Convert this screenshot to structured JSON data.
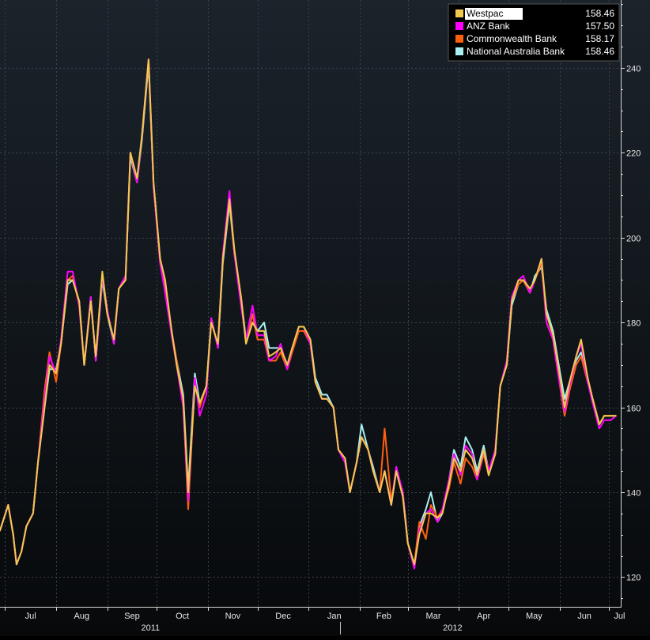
{
  "chart_data": {
    "type": "line",
    "title": "",
    "xlabel": "",
    "ylabel": "",
    "ylim": [
      113,
      256
    ],
    "y_ticks": [
      120,
      140,
      160,
      180,
      200,
      220,
      240
    ],
    "y_axis_side": "right",
    "x_range": [
      "2011-06-28",
      "2012-07-08"
    ],
    "month_ticks": [
      {
        "label": "Jul",
        "date": "2011-07-01"
      },
      {
        "label": "Aug",
        "date": "2011-08-01"
      },
      {
        "label": "Sep",
        "date": "2011-09-01"
      },
      {
        "label": "Oct",
        "date": "2011-10-01"
      },
      {
        "label": "Nov",
        "date": "2011-11-01"
      },
      {
        "label": "Dec",
        "date": "2011-12-01"
      },
      {
        "label": "Jan",
        "date": "2012-01-01"
      },
      {
        "label": "Feb",
        "date": "2012-02-01"
      },
      {
        "label": "Mar",
        "date": "2012-03-01"
      },
      {
        "label": "Apr",
        "date": "2012-04-01"
      },
      {
        "label": "May",
        "date": "2012-05-01"
      },
      {
        "label": "Jun",
        "date": "2012-06-01"
      },
      {
        "label": "Jul",
        "date": "2012-07-01"
      }
    ],
    "year_labels": [
      {
        "label": "2011",
        "date": "2011-10-01"
      },
      {
        "label": "2012",
        "date": "2012-04-01"
      }
    ],
    "year_divider_date": "2012-01-20",
    "grid": true,
    "legend_position": "top-right",
    "background": "#0e1318",
    "x": [
      "2011-06-28",
      "2011-07-03",
      "2011-07-06",
      "2011-07-08",
      "2011-07-11",
      "2011-07-14",
      "2011-07-18",
      "2011-07-21",
      "2011-07-25",
      "2011-07-28",
      "2011-08-01",
      "2011-08-04",
      "2011-08-08",
      "2011-08-11",
      "2011-08-15",
      "2011-08-18",
      "2011-08-22",
      "2011-08-25",
      "2011-08-29",
      "2011-09-01",
      "2011-09-05",
      "2011-09-08",
      "2011-09-12",
      "2011-09-15",
      "2011-09-19",
      "2011-09-22",
      "2011-09-26",
      "2011-09-29",
      "2011-10-03",
      "2011-10-06",
      "2011-10-10",
      "2011-10-13",
      "2011-10-17",
      "2011-10-20",
      "2011-10-24",
      "2011-10-27",
      "2011-10-31",
      "2011-11-03",
      "2011-11-07",
      "2011-11-10",
      "2011-11-14",
      "2011-11-17",
      "2011-11-21",
      "2011-11-24",
      "2011-11-28",
      "2011-12-01",
      "2011-12-05",
      "2011-12-08",
      "2011-12-12",
      "2011-12-15",
      "2011-12-19",
      "2011-12-22",
      "2011-12-26",
      "2011-12-29",
      "2012-01-02",
      "2012-01-05",
      "2012-01-09",
      "2012-01-12",
      "2012-01-16",
      "2012-01-19",
      "2012-01-23",
      "2012-01-26",
      "2012-01-30",
      "2012-02-02",
      "2012-02-06",
      "2012-02-09",
      "2012-02-13",
      "2012-02-16",
      "2012-02-20",
      "2012-02-23",
      "2012-02-27",
      "2012-03-01",
      "2012-03-05",
      "2012-03-08",
      "2012-03-12",
      "2012-03-15",
      "2012-03-19",
      "2012-03-22",
      "2012-03-26",
      "2012-03-29",
      "2012-04-02",
      "2012-04-05",
      "2012-04-09",
      "2012-04-12",
      "2012-04-16",
      "2012-04-19",
      "2012-04-23",
      "2012-04-26",
      "2012-04-30",
      "2012-05-03",
      "2012-05-07",
      "2012-05-10",
      "2012-05-14",
      "2012-05-17",
      "2012-05-21",
      "2012-05-24",
      "2012-05-28",
      "2012-05-31",
      "2012-06-04",
      "2012-06-07",
      "2012-06-11",
      "2012-06-14",
      "2012-06-18",
      "2012-06-21",
      "2012-06-25",
      "2012-06-28",
      "2012-07-02",
      "2012-07-05"
    ],
    "series": [
      {
        "name": "Westpac",
        "last_value": "158.46",
        "color": "#f2c94c",
        "values": [
          131,
          137,
          130,
          123,
          126,
          132,
          135,
          147,
          160,
          170,
          168,
          175,
          190,
          190,
          185,
          170,
          185,
          172,
          192,
          182,
          176,
          188,
          190,
          220,
          214,
          224,
          242,
          213,
          195,
          190,
          178,
          170,
          162,
          140,
          165,
          161,
          165,
          180,
          175,
          195,
          209,
          197,
          186,
          175,
          180,
          178,
          178,
          172,
          173,
          174,
          170,
          174,
          179,
          179,
          176,
          166,
          162,
          162,
          160,
          150,
          148,
          140,
          147,
          153,
          150,
          145,
          140,
          145,
          137,
          145,
          139,
          128,
          123,
          130,
          135,
          135,
          134,
          135,
          142,
          148,
          145,
          150,
          148,
          144,
          150,
          144,
          149,
          165,
          170,
          185,
          190,
          190,
          188,
          190,
          195,
          182,
          177,
          170,
          160,
          166,
          172,
          176,
          167,
          162,
          156,
          158,
          158,
          158
        ]
      },
      {
        "name": "ANZ Bank",
        "last_value": "157.50",
        "color": "#ff00ff",
        "values": [
          131,
          137,
          130,
          123,
          126,
          132,
          135,
          147,
          162,
          172,
          168,
          176,
          192,
          192,
          184,
          170,
          186,
          171,
          191,
          183,
          175,
          188,
          191,
          220,
          213,
          224,
          242,
          212,
          194,
          187,
          177,
          170,
          160,
          138,
          167,
          158,
          163,
          181,
          174,
          196,
          211,
          196,
          184,
          176,
          184,
          177,
          177,
          171,
          172,
          175,
          169,
          174,
          179,
          179,
          175,
          166,
          162,
          162,
          160,
          150,
          147,
          140,
          147,
          153,
          150,
          145,
          140,
          145,
          137,
          146,
          140,
          128,
          122,
          131,
          135,
          136,
          133,
          136,
          143,
          149,
          144,
          151,
          149,
          143,
          150,
          145,
          150,
          165,
          171,
          186,
          190,
          191,
          187,
          190,
          195,
          180,
          176,
          168,
          159,
          165,
          172,
          175,
          166,
          161,
          155,
          157,
          157,
          158
        ]
      },
      {
        "name": "Commonwealth Bank",
        "last_value": "158.17",
        "color": "#ff6010",
        "values": [
          131,
          137,
          130,
          123,
          126,
          132,
          135,
          147,
          164,
          173,
          166,
          175,
          190,
          191,
          184,
          170,
          185,
          172,
          191,
          182,
          176,
          188,
          190,
          220,
          213,
          224,
          242,
          212,
          194,
          188,
          178,
          171,
          161,
          136,
          166,
          160,
          165,
          180,
          175,
          195,
          209,
          196,
          186,
          175,
          182,
          176,
          176,
          171,
          171,
          173,
          169,
          173,
          178,
          178,
          175,
          166,
          162,
          162,
          160,
          150,
          148,
          140,
          147,
          153,
          150,
          145,
          140,
          155,
          138,
          145,
          139,
          128,
          123,
          133,
          129,
          137,
          134,
          136,
          141,
          147,
          142,
          148,
          146,
          143,
          149,
          144,
          150,
          165,
          170,
          185,
          189,
          190,
          187,
          190,
          194,
          180,
          176,
          168,
          158,
          164,
          170,
          172,
          166,
          162,
          156,
          158,
          158,
          158
        ]
      },
      {
        "name": "National Australia Bank",
        "last_value": "158.46",
        "color": "#a8f0f0",
        "values": [
          131,
          137,
          130,
          123,
          126,
          132,
          135,
          147,
          160,
          169,
          169,
          175,
          189,
          190,
          185,
          170,
          186,
          171,
          190,
          182,
          175,
          188,
          190,
          219,
          213,
          223,
          241,
          212,
          195,
          190,
          177,
          171,
          163,
          141,
          168,
          161,
          165,
          181,
          174,
          194,
          208,
          196,
          186,
          176,
          180,
          178,
          180,
          174,
          174,
          174,
          170,
          174,
          179,
          179,
          176,
          167,
          163,
          163,
          160,
          150,
          148,
          140,
          147,
          156,
          150,
          146,
          140,
          145,
          137,
          145,
          140,
          128,
          123,
          132,
          136,
          140,
          133,
          135,
          143,
          150,
          146,
          153,
          150,
          145,
          151,
          145,
          149,
          165,
          170,
          184,
          189,
          190,
          187,
          191,
          193,
          183,
          178,
          171,
          162,
          166,
          171,
          173,
          166,
          162,
          156,
          158,
          158,
          158
        ]
      }
    ]
  }
}
